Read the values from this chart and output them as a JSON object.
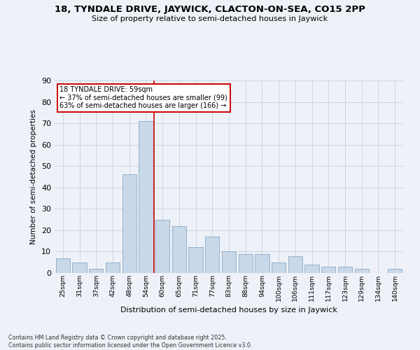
{
  "title_line1": "18, TYNDALE DRIVE, JAYWICK, CLACTON-ON-SEA, CO15 2PP",
  "title_line2": "Size of property relative to semi-detached houses in Jaywick",
  "xlabel": "Distribution of semi-detached houses by size in Jaywick",
  "ylabel": "Number of semi-detached properties",
  "annotation_title": "18 TYNDALE DRIVE: 59sqm",
  "annotation_line2": "← 37% of semi-detached houses are smaller (99)",
  "annotation_line3": "63% of semi-detached houses are larger (166) →",
  "footer_line1": "Contains HM Land Registry data © Crown copyright and database right 2025.",
  "footer_line2": "Contains public sector information licensed under the Open Government Licence v3.0.",
  "bar_color": "#c8d8e8",
  "bar_edge_color": "#8aa8c8",
  "vline_color": "#cc0000",
  "background_color": "#eef2f8",
  "annotation_box_color": "#ffffff",
  "annotation_box_edge": "#cc0000",
  "categories": [
    "25sqm",
    "31sqm",
    "37sqm",
    "42sqm",
    "48sqm",
    "54sqm",
    "60sqm",
    "65sqm",
    "71sqm",
    "77sqm",
    "83sqm",
    "88sqm",
    "94sqm",
    "100sqm",
    "106sqm",
    "111sqm",
    "117sqm",
    "123sqm",
    "129sqm",
    "134sqm",
    "140sqm"
  ],
  "values": [
    7,
    5,
    2,
    5,
    46,
    71,
    25,
    22,
    12,
    17,
    10,
    9,
    9,
    5,
    8,
    4,
    3,
    3,
    2,
    0,
    2
  ],
  "ylim": [
    0,
    90
  ],
  "yticks": [
    0,
    10,
    20,
    30,
    40,
    50,
    60,
    70,
    80,
    90
  ],
  "vline_x_index": 5.5
}
